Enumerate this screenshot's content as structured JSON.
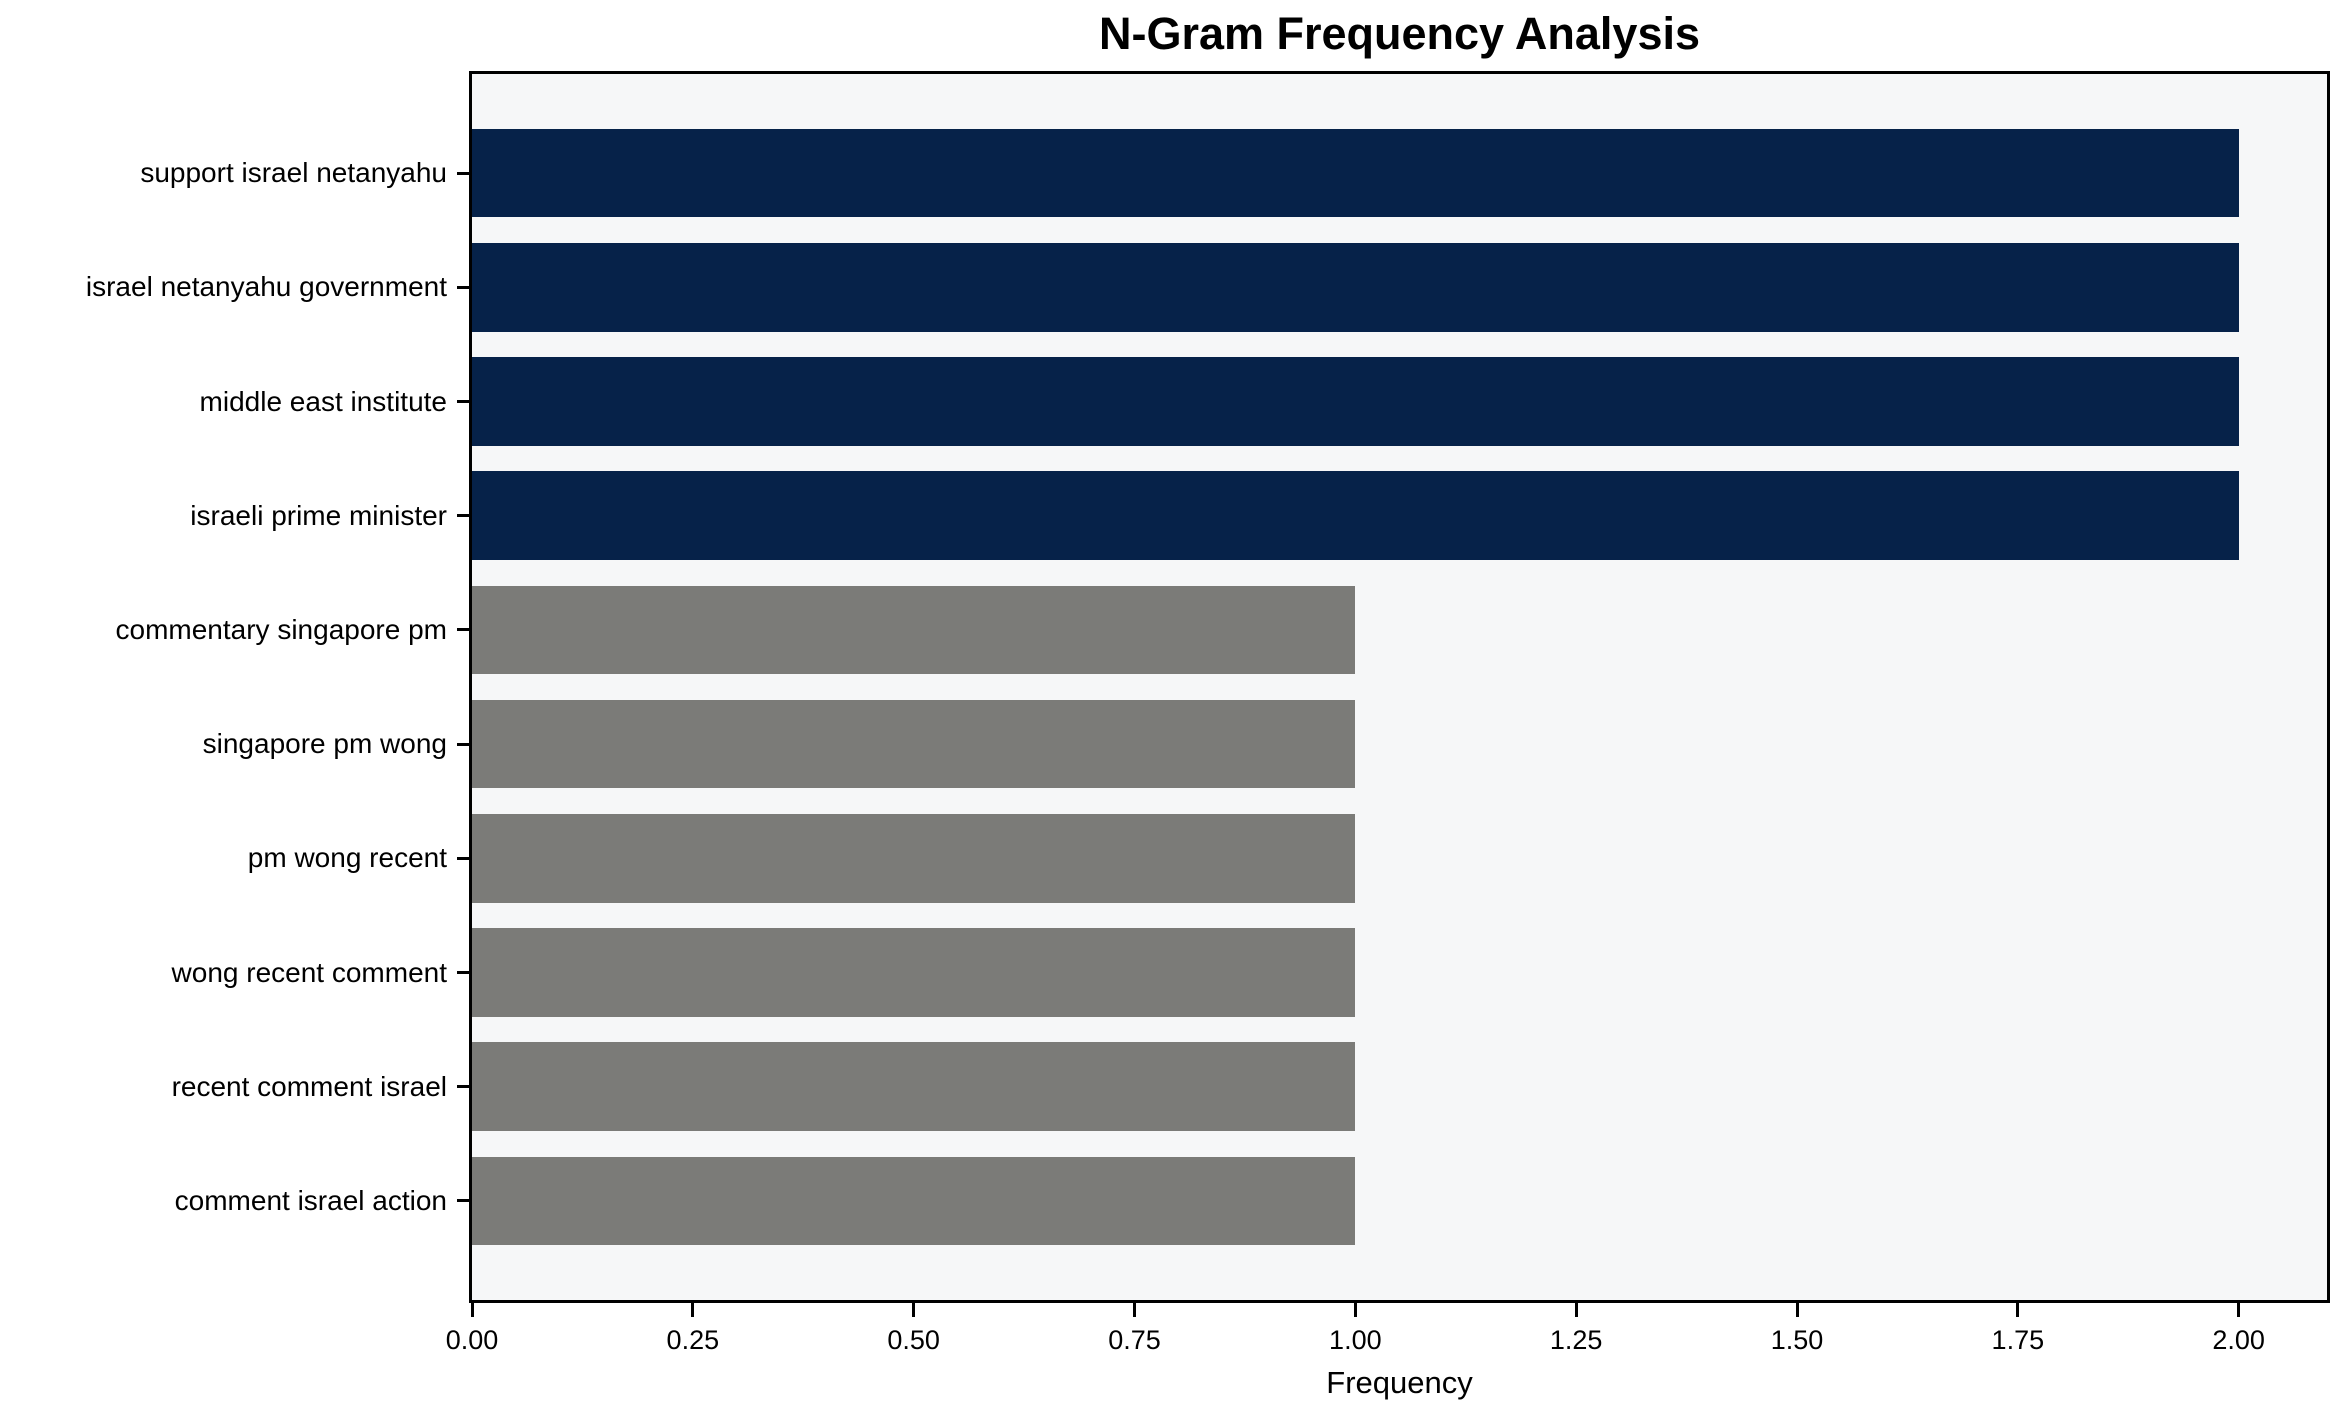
{
  "chart_data": {
    "type": "bar",
    "orientation": "horizontal",
    "title": "N-Gram Frequency Analysis",
    "xlabel": "Frequency",
    "ylabel": "",
    "grid": false,
    "legend": null,
    "xlim": [
      0,
      2.1
    ],
    "plot_bg_color": "#f6f7f8",
    "spine_color": "#000000",
    "highlight_color": "#062249",
    "default_color": "#7b7b78",
    "xticks": [
      {
        "value": 0.0,
        "label": "0.00"
      },
      {
        "value": 0.25,
        "label": "0.25"
      },
      {
        "value": 0.5,
        "label": "0.50"
      },
      {
        "value": 0.75,
        "label": "0.75"
      },
      {
        "value": 1.0,
        "label": "1.00"
      },
      {
        "value": 1.25,
        "label": "1.25"
      },
      {
        "value": 1.5,
        "label": "1.50"
      },
      {
        "value": 1.75,
        "label": "1.75"
      },
      {
        "value": 2.0,
        "label": "2.00"
      }
    ],
    "categories": [
      "support israel netanyahu",
      "israel netanyahu government",
      "middle east institute",
      "israeli prime minister",
      "commentary singapore pm",
      "singapore pm wong",
      "pm wong recent",
      "wong recent comment",
      "recent comment israel",
      "comment israel action"
    ],
    "values": [
      2,
      2,
      2,
      2,
      1,
      1,
      1,
      1,
      1,
      1
    ],
    "bars": [
      {
        "label": "support israel netanyahu",
        "value": 2,
        "color": "#062249"
      },
      {
        "label": "israel netanyahu government",
        "value": 2,
        "color": "#062249"
      },
      {
        "label": "middle east institute",
        "value": 2,
        "color": "#062249"
      },
      {
        "label": "israeli prime minister",
        "value": 2,
        "color": "#062249"
      },
      {
        "label": "commentary singapore pm",
        "value": 1,
        "color": "#7b7b78"
      },
      {
        "label": "singapore pm wong",
        "value": 1,
        "color": "#7b7b78"
      },
      {
        "label": "pm wong recent",
        "value": 1,
        "color": "#7b7b78"
      },
      {
        "label": "wong recent comment",
        "value": 1,
        "color": "#7b7b78"
      },
      {
        "label": "recent comment israel",
        "value": 1,
        "color": "#7b7b78"
      },
      {
        "label": "comment israel action",
        "value": 1,
        "color": "#7b7b78"
      }
    ]
  }
}
